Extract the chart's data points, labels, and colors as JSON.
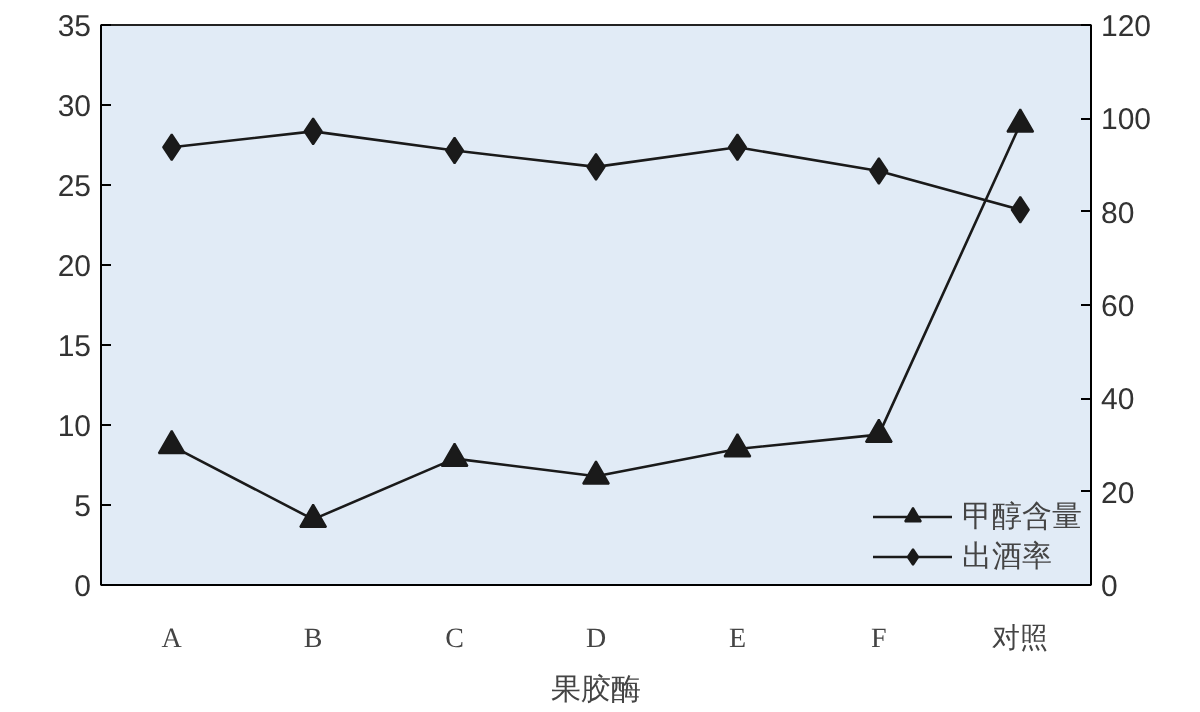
{
  "chart_data": {
    "type": "line",
    "xlabel": "果胶酶",
    "categories": [
      "A",
      "B",
      "C",
      "D",
      "E",
      "F",
      "对照"
    ],
    "series": [
      {
        "name": "甲醇含量",
        "color": "#1a1a1a",
        "marker": "triangle",
        "values": [
          8.7,
          4.1,
          7.9,
          6.8,
          8.5,
          9.4,
          28.8
        ]
      },
      {
        "name": "出酒率",
        "color": "#1a1a1a",
        "marker": "diamond",
        "axis": "y2",
        "values": [
          93.8,
          97.2,
          93.1,
          89.6,
          93.8,
          88.7,
          80.4
        ]
      }
    ],
    "ylim": [
      0,
      35
    ],
    "yticks": [
      0,
      5,
      10,
      15,
      20,
      25,
      30,
      35
    ],
    "y2lim": [
      0,
      120
    ],
    "y2ticks": [
      0,
      20,
      40,
      60,
      80,
      100,
      120
    ],
    "grid": false,
    "legend": "bottom right",
    "line_style": "solid"
  }
}
